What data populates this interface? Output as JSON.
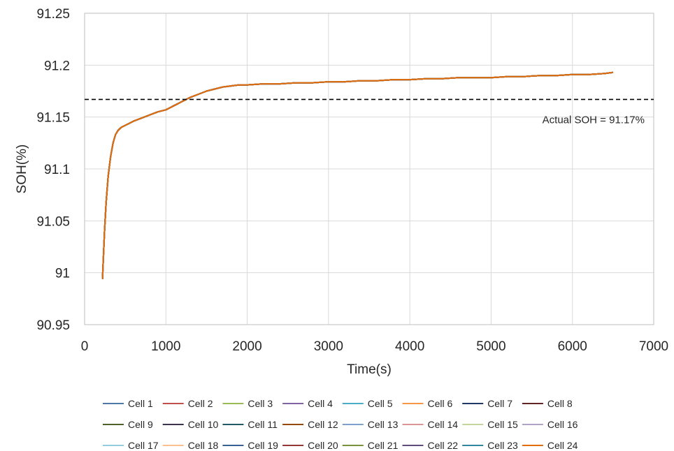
{
  "chart_data": {
    "type": "line",
    "xlabel": "Time(s)",
    "ylabel": "SOH(%)",
    "xlim": [
      0,
      7000
    ],
    "ylim": [
      90.95,
      91.25
    ],
    "x_ticks": [
      "0",
      "1000",
      "2000",
      "3000",
      "4000",
      "5000",
      "6000",
      "7000"
    ],
    "y_ticks": [
      "90.95",
      "91",
      "91.05",
      "91.1",
      "91.15",
      "91.2",
      "91.25"
    ],
    "grid": true,
    "legend_position": "bottom",
    "reference_line": {
      "y": 91.167,
      "style": "dashed",
      "color": "#000000",
      "label": "Actual SOH = 91.17%"
    },
    "x": [
      220,
      230,
      245,
      265,
      290,
      320,
      350,
      380,
      410,
      450,
      500,
      600,
      700,
      800,
      900,
      1000,
      1100,
      1200,
      1300,
      1400,
      1500,
      1600,
      1700,
      1800,
      1900,
      2000,
      2200,
      2400,
      2600,
      2800,
      3000,
      3200,
      3400,
      3600,
      3800,
      4000,
      4200,
      4400,
      4600,
      4800,
      5000,
      5200,
      5400,
      5600,
      5800,
      6000,
      6200,
      6400,
      6500
    ],
    "y_common": [
      90.994,
      91.012,
      91.04,
      91.068,
      91.093,
      91.112,
      91.125,
      91.133,
      91.137,
      91.14,
      91.142,
      91.146,
      91.149,
      91.152,
      91.155,
      91.157,
      91.161,
      91.165,
      91.169,
      91.172,
      91.175,
      91.177,
      91.179,
      91.18,
      91.181,
      91.181,
      91.182,
      91.182,
      91.183,
      91.183,
      91.184,
      91.184,
      91.185,
      91.185,
      91.186,
      91.186,
      91.187,
      91.187,
      91.188,
      91.188,
      91.188,
      91.189,
      91.189,
      91.19,
      91.19,
      91.191,
      91.191,
      91.192,
      91.193
    ],
    "series": [
      {
        "name": "Cell 1",
        "color": "#4e79a7"
      },
      {
        "name": "Cell 2",
        "color": "#c0504d"
      },
      {
        "name": "Cell 3",
        "color": "#9bbb59"
      },
      {
        "name": "Cell 4",
        "color": "#8064a2"
      },
      {
        "name": "Cell 5",
        "color": "#4bacc6"
      },
      {
        "name": "Cell 6",
        "color": "#f79646"
      },
      {
        "name": "Cell 7",
        "color": "#1f3864"
      },
      {
        "name": "Cell 8",
        "color": "#632523"
      },
      {
        "name": "Cell 9",
        "color": "#4f6228"
      },
      {
        "name": "Cell 10",
        "color": "#3f3151"
      },
      {
        "name": "Cell 11",
        "color": "#215968"
      },
      {
        "name": "Cell 12",
        "color": "#984807"
      },
      {
        "name": "Cell 13",
        "color": "#7f9fcf"
      },
      {
        "name": "Cell 14",
        "color": "#d99694"
      },
      {
        "name": "Cell 15",
        "color": "#c3d69b"
      },
      {
        "name": "Cell 16",
        "color": "#b3a2c7"
      },
      {
        "name": "Cell 17",
        "color": "#93cddd"
      },
      {
        "name": "Cell 18",
        "color": "#fac090"
      },
      {
        "name": "Cell 19",
        "color": "#376092"
      },
      {
        "name": "Cell 20",
        "color": "#953735"
      },
      {
        "name": "Cell 21",
        "color": "#77933c"
      },
      {
        "name": "Cell 22",
        "color": "#604a7b"
      },
      {
        "name": "Cell 23",
        "color": "#31859c"
      },
      {
        "name": "Cell 24",
        "color": "#e46c0a"
      }
    ]
  }
}
